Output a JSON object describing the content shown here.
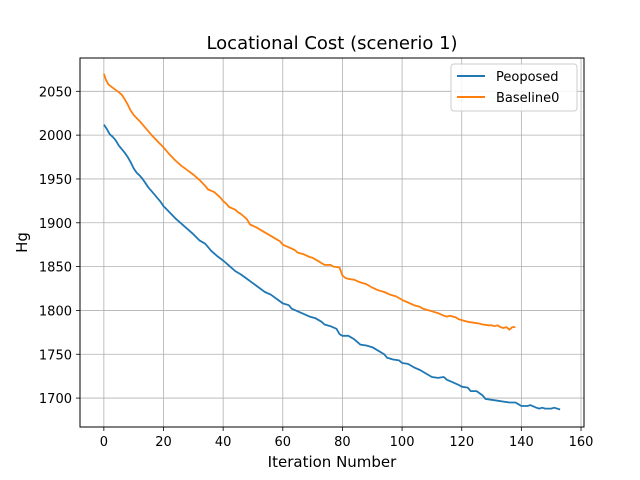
{
  "chart_data": {
    "type": "line",
    "title": "Locational Cost (scenerio 1)",
    "xlabel": "Iteration Number",
    "ylabel": "Hg",
    "xlim": [
      -8,
      161
    ],
    "ylim": [
      1667,
      2088
    ],
    "xticks": [
      0,
      20,
      40,
      60,
      80,
      100,
      120,
      140,
      160
    ],
    "yticks": [
      1700,
      1750,
      1800,
      1850,
      1900,
      1950,
      2000,
      2050
    ],
    "grid": true,
    "legend_position": "top-right",
    "series": [
      {
        "name": "Peoposed",
        "color": "#1f77b4",
        "points": [
          [
            0,
            2012
          ],
          [
            1,
            2007
          ],
          [
            2,
            2001
          ],
          [
            3,
            1998
          ],
          [
            4,
            1994
          ],
          [
            5,
            1988
          ],
          [
            6,
            1984
          ],
          [
            7,
            1980
          ],
          [
            8,
            1975
          ],
          [
            9,
            1969
          ],
          [
            10,
            1962
          ],
          [
            11,
            1957
          ],
          [
            12,
            1954
          ],
          [
            13,
            1950
          ],
          [
            14,
            1945
          ],
          [
            15,
            1940
          ],
          [
            16,
            1936
          ],
          [
            17,
            1932
          ],
          [
            18,
            1928
          ],
          [
            19,
            1924
          ],
          [
            20,
            1919
          ],
          [
            22,
            1912
          ],
          [
            24,
            1905
          ],
          [
            26,
            1899
          ],
          [
            28,
            1893
          ],
          [
            30,
            1887
          ],
          [
            32,
            1880
          ],
          [
            34,
            1876
          ],
          [
            36,
            1868
          ],
          [
            38,
            1862
          ],
          [
            40,
            1857
          ],
          [
            42,
            1851
          ],
          [
            44,
            1845
          ],
          [
            46,
            1841
          ],
          [
            48,
            1836
          ],
          [
            50,
            1831
          ],
          [
            52,
            1826
          ],
          [
            54,
            1821
          ],
          [
            56,
            1818
          ],
          [
            58,
            1813
          ],
          [
            60,
            1808
          ],
          [
            62,
            1806
          ],
          [
            63,
            1802
          ],
          [
            65,
            1799
          ],
          [
            67,
            1796
          ],
          [
            69,
            1793
          ],
          [
            71,
            1791
          ],
          [
            73,
            1787
          ],
          [
            74,
            1784
          ],
          [
            76,
            1782
          ],
          [
            78,
            1779
          ],
          [
            79,
            1773
          ],
          [
            80,
            1771
          ],
          [
            82,
            1771
          ],
          [
            84,
            1767
          ],
          [
            86,
            1761
          ],
          [
            88,
            1760
          ],
          [
            90,
            1758
          ],
          [
            92,
            1754
          ],
          [
            94,
            1750
          ],
          [
            95,
            1746
          ],
          [
            97,
            1744
          ],
          [
            99,
            1743
          ],
          [
            100,
            1740
          ],
          [
            102,
            1739
          ],
          [
            104,
            1735
          ],
          [
            106,
            1732
          ],
          [
            108,
            1728
          ],
          [
            110,
            1724
          ],
          [
            112,
            1723
          ],
          [
            114,
            1724
          ],
          [
            115,
            1721
          ],
          [
            117,
            1718
          ],
          [
            119,
            1715
          ],
          [
            120,
            1713
          ],
          [
            122,
            1712
          ],
          [
            123,
            1708
          ],
          [
            125,
            1708
          ],
          [
            127,
            1703
          ],
          [
            128,
            1699
          ],
          [
            130,
            1698
          ],
          [
            132,
            1697
          ],
          [
            134,
            1696
          ],
          [
            136,
            1695
          ],
          [
            138,
            1695
          ],
          [
            139,
            1693
          ],
          [
            140,
            1691
          ],
          [
            142,
            1691
          ],
          [
            143,
            1692
          ],
          [
            145,
            1689
          ],
          [
            146,
            1688
          ],
          [
            147,
            1689
          ],
          [
            148,
            1688
          ],
          [
            150,
            1688
          ],
          [
            151,
            1689
          ],
          [
            153,
            1687
          ]
        ]
      },
      {
        "name": "Baseline0",
        "color": "#ff7f0e",
        "points": [
          [
            0,
            2070
          ],
          [
            0.7,
            2063
          ],
          [
            1.5,
            2058
          ],
          [
            3,
            2054
          ],
          [
            5,
            2049
          ],
          [
            6,
            2046
          ],
          [
            7,
            2041
          ],
          [
            8,
            2035
          ],
          [
            9,
            2028
          ],
          [
            10,
            2023
          ],
          [
            12,
            2016
          ],
          [
            14,
            2008
          ],
          [
            16,
            2000
          ],
          [
            18,
            1993
          ],
          [
            20,
            1986
          ],
          [
            22,
            1978
          ],
          [
            24,
            1971
          ],
          [
            26,
            1965
          ],
          [
            28,
            1960
          ],
          [
            30,
            1955
          ],
          [
            32,
            1949
          ],
          [
            34,
            1942
          ],
          [
            35,
            1938
          ],
          [
            37,
            1935
          ],
          [
            39,
            1929
          ],
          [
            40,
            1925
          ],
          [
            41,
            1922
          ],
          [
            42,
            1918
          ],
          [
            44,
            1915
          ],
          [
            45,
            1912
          ],
          [
            46,
            1910
          ],
          [
            48,
            1904
          ],
          [
            49,
            1898
          ],
          [
            51,
            1895
          ],
          [
            53,
            1891
          ],
          [
            55,
            1887
          ],
          [
            57,
            1883
          ],
          [
            59,
            1879
          ],
          [
            60,
            1875
          ],
          [
            62,
            1872
          ],
          [
            64,
            1869
          ],
          [
            65,
            1866
          ],
          [
            67,
            1864
          ],
          [
            69,
            1861
          ],
          [
            70,
            1860
          ],
          [
            72,
            1856
          ],
          [
            74,
            1852
          ],
          [
            76,
            1852
          ],
          [
            77,
            1850
          ],
          [
            79,
            1849
          ],
          [
            80,
            1840
          ],
          [
            81,
            1837
          ],
          [
            82,
            1836
          ],
          [
            84,
            1835
          ],
          [
            86,
            1832
          ],
          [
            88,
            1830
          ],
          [
            90,
            1826
          ],
          [
            92,
            1823
          ],
          [
            94,
            1821
          ],
          [
            96,
            1818
          ],
          [
            98,
            1816
          ],
          [
            100,
            1812
          ],
          [
            102,
            1809
          ],
          [
            104,
            1806
          ],
          [
            106,
            1804
          ],
          [
            107,
            1802
          ],
          [
            109,
            1800
          ],
          [
            110,
            1799
          ],
          [
            112,
            1797
          ],
          [
            114,
            1794
          ],
          [
            115,
            1793
          ],
          [
            116,
            1794
          ],
          [
            118,
            1792
          ],
          [
            119,
            1790
          ],
          [
            120,
            1789
          ],
          [
            122,
            1787
          ],
          [
            124,
            1786
          ],
          [
            126,
            1785
          ],
          [
            127,
            1784
          ],
          [
            129,
            1783
          ],
          [
            130,
            1783
          ],
          [
            131,
            1782
          ],
          [
            132,
            1783
          ],
          [
            133,
            1781
          ],
          [
            134,
            1780
          ],
          [
            135,
            1781
          ],
          [
            136,
            1778
          ],
          [
            137,
            1781
          ],
          [
            138,
            1781
          ]
        ]
      }
    ]
  }
}
